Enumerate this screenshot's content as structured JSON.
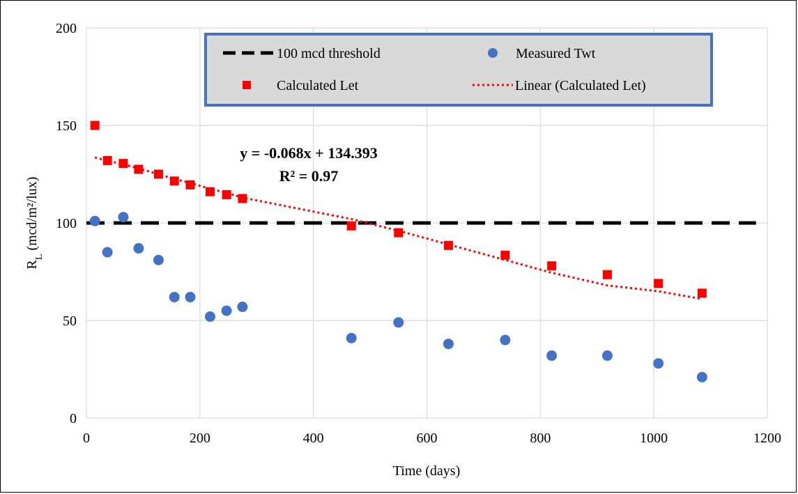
{
  "chart_data": {
    "type": "scatter",
    "title": "",
    "xlabel": "Time (days)",
    "ylabel": {
      "main": "R",
      "sub": "L",
      "rest": " (mcd/m²/lux)"
    },
    "xlim": [
      0,
      1200
    ],
    "ylim": [
      0,
      200
    ],
    "xticks": [
      0,
      200,
      400,
      600,
      800,
      1000,
      1200
    ],
    "yticks": [
      0,
      50,
      100,
      150,
      200
    ],
    "grid": true,
    "legend": {
      "position": "top-center",
      "entries": [
        "100 mcd threshold",
        "Measured Twt",
        "Calculated Let",
        "Linear (Calculated Let)"
      ]
    },
    "threshold": {
      "name": "100 mcd threshold",
      "y": 100,
      "x_range": [
        0,
        1180
      ],
      "color": "#000000"
    },
    "series": [
      {
        "name": "Measured Twt",
        "marker": "circle",
        "color": "#4472C4",
        "points": [
          [
            15,
            101
          ],
          [
            37,
            85
          ],
          [
            65,
            103
          ],
          [
            92,
            87
          ],
          [
            127,
            81
          ],
          [
            155,
            62
          ],
          [
            183,
            62
          ],
          [
            218,
            52
          ],
          [
            247,
            55
          ],
          [
            275,
            57
          ],
          [
            467,
            41
          ],
          [
            550,
            49
          ],
          [
            638,
            38
          ],
          [
            738,
            40
          ],
          [
            820,
            32
          ],
          [
            918,
            32
          ],
          [
            1008,
            28
          ],
          [
            1085,
            21
          ]
        ]
      },
      {
        "name": "Calculated Let",
        "marker": "square",
        "color": "#FF0000",
        "points": [
          [
            15,
            150
          ],
          [
            37,
            132
          ],
          [
            65,
            130.5
          ],
          [
            92,
            127.5
          ],
          [
            127,
            125
          ],
          [
            155,
            121.5
          ],
          [
            183,
            119.5
          ],
          [
            218,
            116
          ],
          [
            247,
            114.5
          ],
          [
            275,
            112.5
          ],
          [
            467,
            98.5
          ],
          [
            550,
            95
          ],
          [
            638,
            88.5
          ],
          [
            738,
            83.5
          ],
          [
            820,
            78
          ],
          [
            918,
            73.5
          ],
          [
            1008,
            69
          ],
          [
            1085,
            64
          ]
        ]
      }
    ],
    "trendline": {
      "name": "Linear (Calculated Let)",
      "color": "#FF0000",
      "points": [
        [
          15,
          133.5
        ],
        [
          37,
          132
        ],
        [
          65,
          130
        ],
        [
          92,
          128
        ],
        [
          127,
          125
        ],
        [
          155,
          122.5
        ],
        [
          183,
          120.5
        ],
        [
          218,
          117.5
        ],
        [
          247,
          115.5
        ],
        [
          275,
          113
        ],
        [
          467,
          102
        ],
        [
          550,
          96
        ],
        [
          638,
          89
        ],
        [
          738,
          81
        ],
        [
          820,
          74.5
        ],
        [
          918,
          68
        ],
        [
          1008,
          65
        ],
        [
          1085,
          61
        ]
      ]
    },
    "annotations": {
      "equation": "y = -0.068x + 134.393",
      "r_squared": "R² = 0.97"
    }
  }
}
